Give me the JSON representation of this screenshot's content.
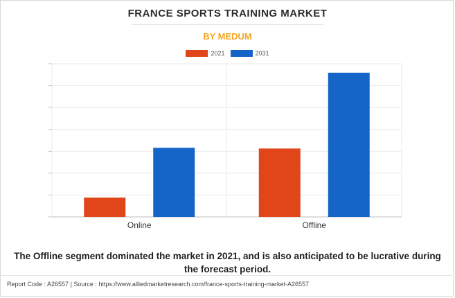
{
  "header": {
    "title": "FRANCE SPORTS TRAINING MARKET",
    "subtitle": "BY MEDUM"
  },
  "colors": {
    "series_2021": "#e0461a",
    "series_2031": "#1565c8",
    "subtitle": "#f5a623"
  },
  "chart_data": {
    "type": "bar",
    "categories": [
      "Online",
      "Offline"
    ],
    "series": [
      {
        "name": "2021",
        "values": [
          1.3,
          4.6
        ]
      },
      {
        "name": "2031",
        "values": [
          4.65,
          9.7
        ]
      }
    ],
    "ylim": [
      0,
      10.3
    ],
    "grid": true,
    "legend": "top-center",
    "xlabel": "",
    "ylabel": ""
  },
  "caption": "The Offline segment dominated the market in 2021, and is also anticipated to be lucrative during the forecast period.",
  "footer": {
    "text": "Report Code : A26557  |  Source : https://www.alliedmarketresearch.com/france-sports-training-market-A26557"
  }
}
